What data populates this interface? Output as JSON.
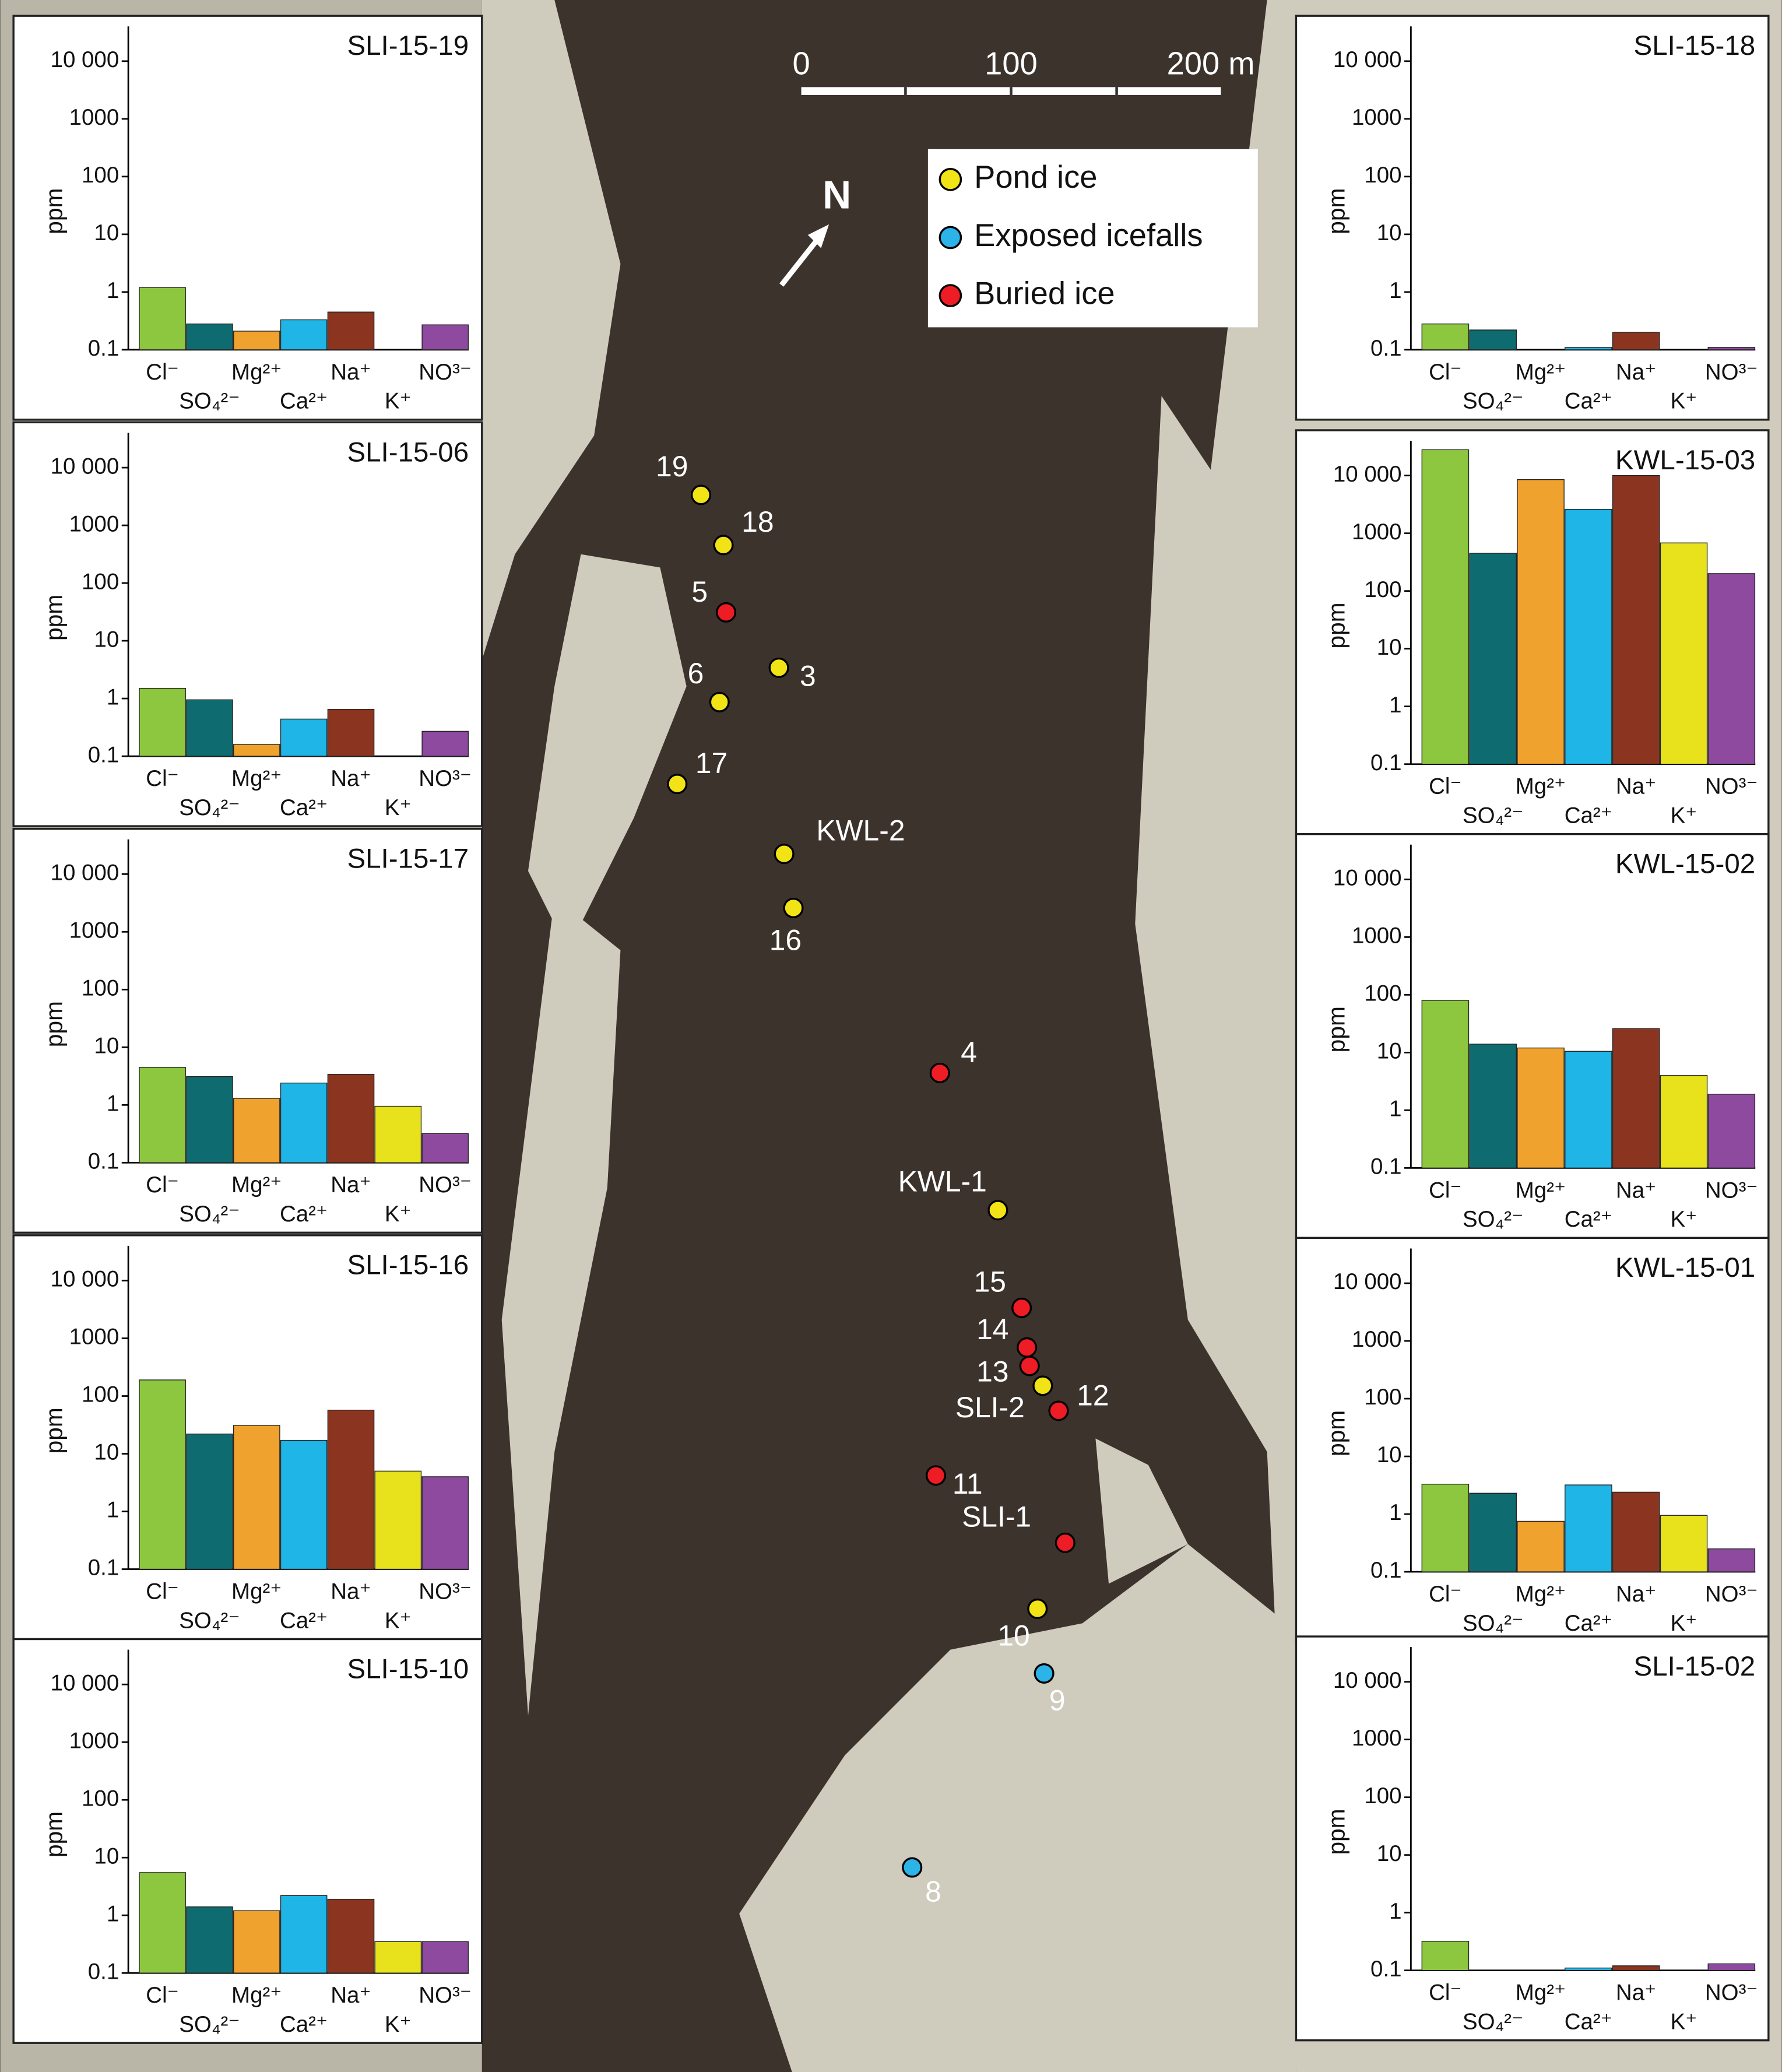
{
  "chart_data": [
    {
      "type": "bar",
      "title": "SLI-15-19",
      "ylabel": "ppm",
      "log_scale": true,
      "categories": [
        "Cl⁻",
        "SO₄²⁻",
        "Mg²⁺",
        "Ca²⁺",
        "Na⁺",
        "K⁺",
        "NO³⁻"
      ],
      "values": [
        1.2,
        0.28,
        0.21,
        0.33,
        0.45,
        null,
        0.27
      ],
      "colors": [
        "#8dc63f",
        "#0e6b6f",
        "#f0a22e",
        "#1fb5e6",
        "#8b3520",
        "#e8e21d",
        "#8e4a9e"
      ],
      "ylim": [
        0.1,
        40000
      ],
      "yticks": [
        0.1,
        1,
        10,
        100,
        1000,
        {
          "value": 10000,
          "label": "10 000"
        }
      ]
    },
    {
      "type": "bar",
      "title": "SLI-15-06",
      "ylabel": "ppm",
      "log_scale": true,
      "categories": [
        "Cl⁻",
        "SO₄²⁻",
        "Mg²⁺",
        "Ca²⁺",
        "Na⁺",
        "K⁺",
        "NO³⁻"
      ],
      "values": [
        1.5,
        0.95,
        0.16,
        0.44,
        0.65,
        null,
        0.27
      ],
      "colors": [
        "#8dc63f",
        "#0e6b6f",
        "#f0a22e",
        "#1fb5e6",
        "#8b3520",
        "#e8e21d",
        "#8e4a9e"
      ],
      "ylim": [
        0.1,
        40000
      ],
      "yticks": [
        0.1,
        1,
        10,
        100,
        1000,
        {
          "value": 10000,
          "label": "10 000"
        }
      ]
    },
    {
      "type": "bar",
      "title": "SLI-15-17",
      "ylabel": "ppm",
      "log_scale": true,
      "categories": [
        "Cl⁻",
        "SO₄²⁻",
        "Mg²⁺",
        "Ca²⁺",
        "Na⁺",
        "K⁺",
        "NO³⁻"
      ],
      "values": [
        4.5,
        3.1,
        1.3,
        2.4,
        3.4,
        0.95,
        0.32
      ],
      "colors": [
        "#8dc63f",
        "#0e6b6f",
        "#f0a22e",
        "#1fb5e6",
        "#8b3520",
        "#e8e21d",
        "#8e4a9e"
      ],
      "ylim": [
        0.1,
        40000
      ],
      "yticks": [
        0.1,
        1,
        10,
        100,
        1000,
        {
          "value": 10000,
          "label": "10 000"
        }
      ]
    },
    {
      "type": "bar",
      "title": "SLI-15-16",
      "ylabel": "ppm",
      "log_scale": true,
      "categories": [
        "Cl⁻",
        "SO₄²⁻",
        "Mg²⁺",
        "Ca²⁺",
        "Na⁺",
        "K⁺",
        "NO³⁻"
      ],
      "values": [
        190,
        22,
        31,
        17,
        57,
        5,
        4
      ],
      "colors": [
        "#8dc63f",
        "#0e6b6f",
        "#f0a22e",
        "#1fb5e6",
        "#8b3520",
        "#e8e21d",
        "#8e4a9e"
      ],
      "ylim": [
        0.1,
        40000
      ],
      "yticks": [
        0.1,
        1,
        10,
        100,
        1000,
        {
          "value": 10000,
          "label": "10 000"
        }
      ]
    },
    {
      "type": "bar",
      "title": "SLI-15-10",
      "ylabel": "ppm",
      "log_scale": true,
      "categories": [
        "Cl⁻",
        "SO₄²⁻",
        "Mg²⁺",
        "Ca²⁺",
        "Na⁺",
        "K⁺",
        "NO³⁻"
      ],
      "values": [
        5.5,
        1.4,
        1.2,
        2.2,
        1.9,
        0.35,
        0.35
      ],
      "colors": [
        "#8dc63f",
        "#0e6b6f",
        "#f0a22e",
        "#1fb5e6",
        "#8b3520",
        "#e8e21d",
        "#8e4a9e"
      ],
      "ylim": [
        0.1,
        40000
      ],
      "yticks": [
        0.1,
        1,
        10,
        100,
        1000,
        {
          "value": 10000,
          "label": "10 000"
        }
      ]
    },
    {
      "type": "bar",
      "title": "SLI-15-18",
      "ylabel": "ppm",
      "log_scale": true,
      "categories": [
        "Cl⁻",
        "SO₄²⁻",
        "Mg²⁺",
        "Ca²⁺",
        "Na⁺",
        "K⁺",
        "NO³⁻"
      ],
      "values": [
        0.28,
        0.22,
        null,
        0.11,
        0.2,
        null,
        0.11
      ],
      "colors": [
        "#8dc63f",
        "#0e6b6f",
        "#f0a22e",
        "#1fb5e6",
        "#8b3520",
        "#e8e21d",
        "#8e4a9e"
      ],
      "ylim": [
        0.1,
        40000
      ],
      "yticks": [
        0.1,
        1,
        10,
        100,
        1000,
        {
          "value": 10000,
          "label": "10 000"
        }
      ]
    },
    {
      "type": "bar",
      "title": "KWL-15-03",
      "ylabel": "ppm",
      "log_scale": true,
      "categories": [
        "Cl⁻",
        "SO₄²⁻",
        "Mg²⁺",
        "Ca²⁺",
        "Na⁺",
        "K⁺",
        "NO³⁻"
      ],
      "values": [
        28000,
        450,
        8500,
        2600,
        10000,
        680,
        200
      ],
      "colors": [
        "#8dc63f",
        "#0e6b6f",
        "#f0a22e",
        "#1fb5e6",
        "#8b3520",
        "#e8e21d",
        "#8e4a9e"
      ],
      "ylim": [
        0.1,
        40000
      ],
      "yticks": [
        0.1,
        1,
        10,
        100,
        1000,
        {
          "value": 10000,
          "label": "10 000"
        }
      ]
    },
    {
      "type": "bar",
      "title": "KWL-15-02",
      "ylabel": "ppm",
      "log_scale": true,
      "categories": [
        "Cl⁻",
        "SO₄²⁻",
        "Mg²⁺",
        "Ca²⁺",
        "Na⁺",
        "K⁺",
        "NO³⁻"
      ],
      "values": [
        80,
        14,
        12,
        10.5,
        26,
        4,
        1.9
      ],
      "colors": [
        "#8dc63f",
        "#0e6b6f",
        "#f0a22e",
        "#1fb5e6",
        "#8b3520",
        "#e8e21d",
        "#8e4a9e"
      ],
      "ylim": [
        0.1,
        40000
      ],
      "yticks": [
        0.1,
        1,
        10,
        100,
        1000,
        {
          "value": 10000,
          "label": "10 000"
        }
      ]
    },
    {
      "type": "bar",
      "title": "KWL-15-01",
      "ylabel": "ppm",
      "log_scale": true,
      "categories": [
        "Cl⁻",
        "SO₄²⁻",
        "Mg²⁺",
        "Ca²⁺",
        "Na⁺",
        "K⁺",
        "NO³⁻"
      ],
      "values": [
        3.3,
        2.3,
        0.75,
        3.2,
        2.4,
        0.95,
        0.25
      ],
      "colors": [
        "#8dc63f",
        "#0e6b6f",
        "#f0a22e",
        "#1fb5e6",
        "#8b3520",
        "#e8e21d",
        "#8e4a9e"
      ],
      "ylim": [
        0.1,
        40000
      ],
      "yticks": [
        0.1,
        1,
        10,
        100,
        1000,
        {
          "value": 10000,
          "label": "10 000"
        }
      ]
    },
    {
      "type": "bar",
      "title": "SLI-15-02",
      "ylabel": "ppm",
      "log_scale": true,
      "categories": [
        "Cl⁻",
        "SO₄²⁻",
        "Mg²⁺",
        "Ca²⁺",
        "Na⁺",
        "K⁺",
        "NO³⁻"
      ],
      "values": [
        0.32,
        null,
        null,
        0.11,
        0.12,
        null,
        0.13
      ],
      "colors": [
        "#8dc63f",
        "#0e6b6f",
        "#f0a22e",
        "#1fb5e6",
        "#8b3520",
        "#e8e21d",
        "#8e4a9e"
      ],
      "ylim": [
        0.1,
        40000
      ],
      "yticks": [
        0.1,
        1,
        10,
        100,
        1000,
        {
          "value": 10000,
          "label": "10 000"
        }
      ]
    }
  ],
  "map": {
    "scale": [
      "0",
      "100",
      "200 m"
    ],
    "north": "N",
    "legend": [
      {
        "name": "Pond ice",
        "color": "#f2e316",
        "sites": [
          "19",
          "18",
          "3",
          "6",
          "17",
          "KWL-2",
          "16",
          "KWL-1",
          "SLI-2",
          "10"
        ]
      },
      {
        "name": "Exposed icefalls",
        "color": "#2cb3e8",
        "sites": [
          "9",
          "8"
        ]
      },
      {
        "name": "Buried ice",
        "color": "#ee1c24",
        "sites": [
          "5",
          "4",
          "15",
          "14",
          "13",
          "12",
          "11",
          "SLI-1"
        ]
      }
    ]
  }
}
